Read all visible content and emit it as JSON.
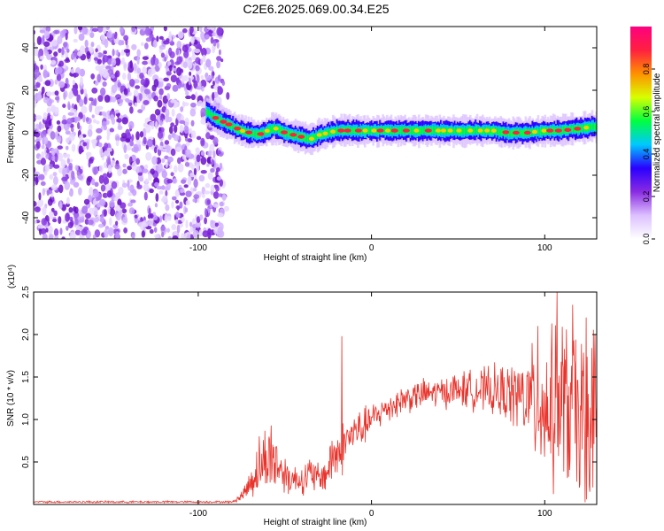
{
  "title": "C2E6.2025.069.00.34.E25",
  "chart_data": [
    {
      "type": "heatmap",
      "xlabel": "Height of straight line (km)",
      "ylabel": "Frequency (Hz)",
      "xlim": [
        -195,
        130
      ],
      "ylim": [
        -50,
        50
      ],
      "x_ticks": [
        -100,
        0,
        100
      ],
      "x_tick_labels": [
        "-100",
        "0",
        "100"
      ],
      "y_ticks": [
        -40,
        -20,
        0,
        20,
        40
      ],
      "y_tick_labels": [
        "-40",
        "-20",
        "0",
        "20",
        "40"
      ],
      "colorbar": {
        "label": "Normalized spectral amplitude",
        "range": [
          0,
          1
        ],
        "ticks": [
          0.0,
          0.2,
          0.4,
          0.6,
          0.8
        ],
        "tick_labels": [
          "0.0",
          "0.2",
          "0.4",
          "0.6",
          "0.8"
        ],
        "colors": [
          "#ffffff",
          "#dcc0ff",
          "#8a2be2",
          "#2a00ff",
          "#00c8ff",
          "#00ff40",
          "#d8ff00",
          "#ff9000",
          "#ff2040",
          "#ff0080"
        ]
      },
      "noise_region_x": [
        -195,
        -85
      ],
      "band_center": [
        [
          -95,
          10
        ],
        [
          -90,
          7
        ],
        [
          -85,
          5
        ],
        [
          -80,
          3
        ],
        [
          -75,
          1
        ],
        [
          -70,
          0
        ],
        [
          -65,
          -1
        ],
        [
          -60,
          1
        ],
        [
          -55,
          2
        ],
        [
          -50,
          0
        ],
        [
          -45,
          -1
        ],
        [
          -40,
          -2
        ],
        [
          -35,
          -3
        ],
        [
          -30,
          -1
        ],
        [
          -25,
          0
        ],
        [
          -20,
          1
        ],
        [
          -15,
          1
        ],
        [
          -10,
          1
        ],
        [
          0,
          1
        ],
        [
          10,
          1
        ],
        [
          20,
          1
        ],
        [
          30,
          1
        ],
        [
          40,
          1
        ],
        [
          50,
          1
        ],
        [
          60,
          1
        ],
        [
          70,
          1
        ],
        [
          80,
          0
        ],
        [
          90,
          0
        ],
        [
          100,
          1
        ],
        [
          110,
          1
        ],
        [
          120,
          2
        ],
        [
          130,
          3
        ]
      ],
      "band_halfwidth_hz": 3
    },
    {
      "type": "line",
      "xlabel": "Height of straight line (km)",
      "ylabel": "SNR (10 * v/v)",
      "y_scale_label": "(x10⁴)",
      "xlim": [
        -195,
        130
      ],
      "ylim": [
        0,
        2.5
      ],
      "x_ticks": [
        -100,
        0,
        100
      ],
      "x_tick_labels": [
        "-100",
        "0",
        "100"
      ],
      "y_ticks": [
        0.5,
        1.0,
        1.5,
        2.0,
        2.5
      ],
      "y_tick_labels": [
        "0.5",
        "1.0",
        "1.5",
        "2.0",
        "2.5"
      ],
      "line_color": "#e8322a",
      "envelope": {
        "x": [
          -195,
          -80,
          -75,
          -70,
          -65,
          -60,
          -55,
          -50,
          -45,
          -40,
          -35,
          -30,
          -25,
          -22,
          -18,
          -15,
          -10,
          -5,
          0,
          10,
          20,
          30,
          40,
          50,
          60,
          70,
          80,
          90,
          95,
          100,
          105,
          110,
          115,
          120,
          125,
          130
        ],
        "mean": [
          0.03,
          0.03,
          0.1,
          0.25,
          0.45,
          0.55,
          0.5,
          0.35,
          0.3,
          0.3,
          0.35,
          0.3,
          0.4,
          0.6,
          0.6,
          0.75,
          0.85,
          0.9,
          1.0,
          1.15,
          1.25,
          1.3,
          1.32,
          1.35,
          1.35,
          1.33,
          1.3,
          1.25,
          1.2,
          1.15,
          1.1,
          1.2,
          1.1,
          1.0,
          1.1,
          1.2
        ],
        "amp": [
          0.01,
          0.01,
          0.05,
          0.15,
          0.3,
          0.35,
          0.3,
          0.2,
          0.15,
          0.15,
          0.2,
          0.15,
          0.2,
          0.3,
          0.3,
          0.2,
          0.2,
          0.2,
          0.15,
          0.15,
          0.15,
          0.15,
          0.15,
          0.18,
          0.2,
          0.25,
          0.3,
          0.45,
          0.6,
          0.7,
          0.8,
          0.9,
          0.8,
          0.9,
          0.9,
          0.7
        ]
      },
      "spikes": [
        {
          "x": -17,
          "y": 1.98
        },
        {
          "x": -58,
          "y": 0.93
        },
        {
          "x": 96,
          "y": 2.1
        },
        {
          "x": 107,
          "y": 2.5
        },
        {
          "x": 116,
          "y": 2.35
        },
        {
          "x": 124,
          "y": 2.2
        }
      ]
    }
  ]
}
